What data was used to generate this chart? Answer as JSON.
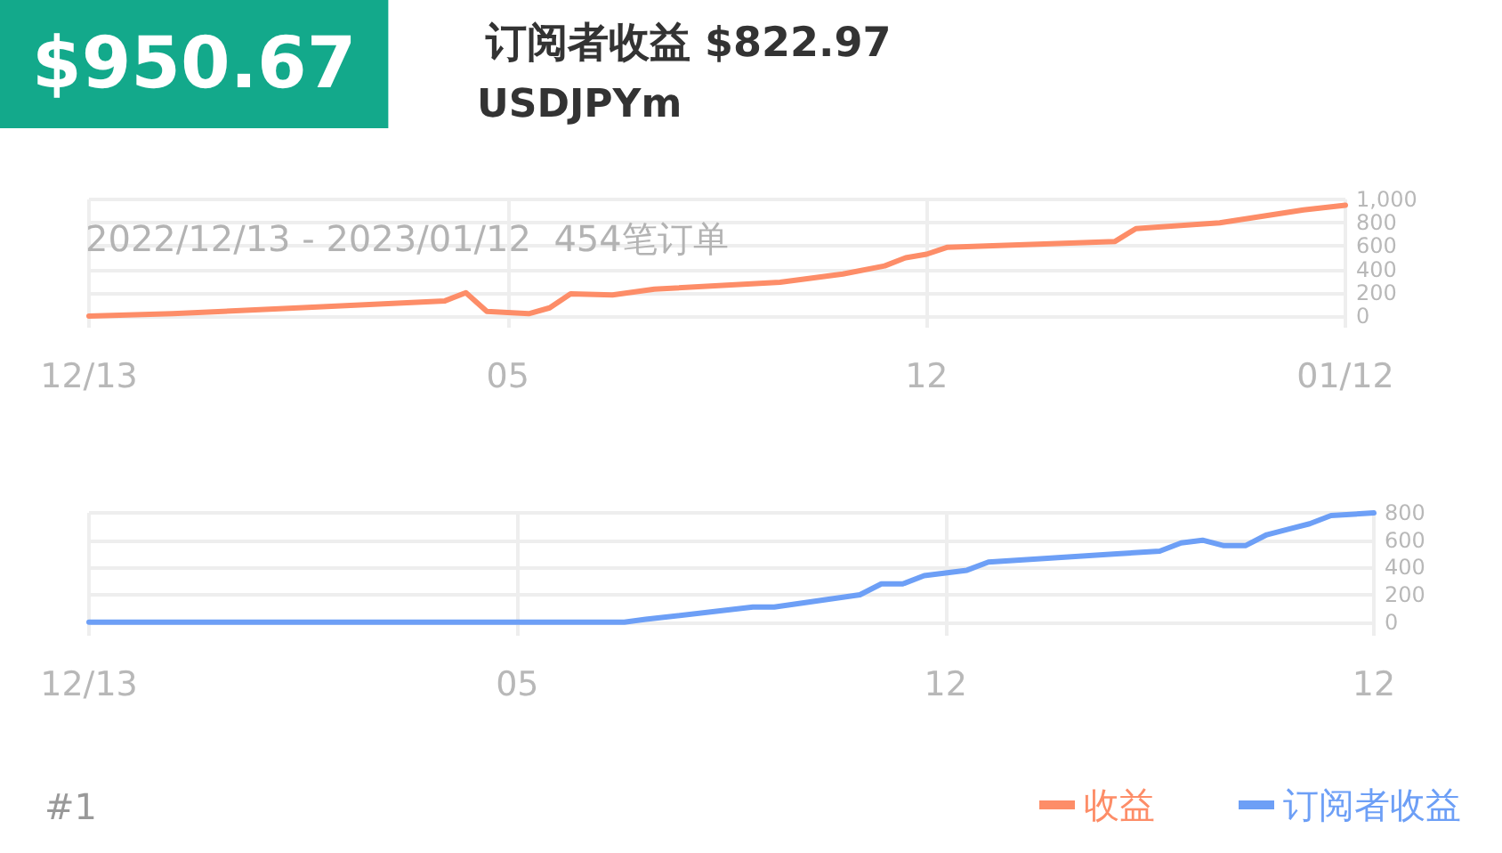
{
  "chart_data": [
    {
      "type": "line",
      "title": "$950.67",
      "subtitle": "订阅者收益 $822.97",
      "annotations": [
        "USDJPYm",
        "2022/12/13 - 2023/01/12  454笔订单",
        "#1"
      ],
      "categories": [
        "12/13",
        null,
        null,
        null,
        null,
        null,
        null,
        null,
        null,
        null,
        null,
        null,
        null,
        null,
        null,
        null,
        null,
        null,
        null,
        null,
        "05",
        null,
        null,
        null,
        null,
        null,
        null,
        null,
        null,
        null,
        null,
        null,
        null,
        null,
        null,
        null,
        null,
        null,
        null,
        null,
        "12",
        null,
        null,
        null,
        null,
        null,
        null,
        null,
        null,
        null,
        null,
        null,
        null,
        null,
        null,
        null,
        null,
        null,
        null,
        null,
        "01/12"
      ],
      "series": [
        {
          "name": "收益",
          "color": "#fd8d68",
          "values": [
            0,
            null,
            null,
            null,
            20,
            null,
            null,
            null,
            null,
            null,
            70,
            null,
            null,
            null,
            null,
            null,
            null,
            130,
            200,
            40,
            null,
            20,
            70,
            190,
            null,
            180,
            null,
            230,
            null,
            null,
            null,
            null,
            null,
            290,
            null,
            null,
            360,
            null,
            430,
            500,
            530,
            590,
            null,
            null,
            null,
            null,
            null,
            null,
            null,
            640,
            750,
            null,
            null,
            null,
            800,
            null,
            null,
            null,
            910,
            null,
            950
          ]
        }
      ],
      "ylim": [
        -100,
        1000
      ],
      "yticks": [
        0,
        200,
        400,
        600,
        800,
        {
          "value": 1000,
          "label": "1,000"
        }
      ],
      "grid": true,
      "legend": "bottom right",
      "marker": "none",
      "line_style": "solid"
    },
    {
      "type": "line",
      "categories": [
        "12/13",
        null,
        null,
        null,
        null,
        null,
        null,
        null,
        null,
        null,
        null,
        null,
        null,
        null,
        null,
        null,
        null,
        null,
        null,
        null,
        "05",
        null,
        null,
        null,
        null,
        null,
        null,
        null,
        null,
        null,
        null,
        null,
        null,
        null,
        null,
        null,
        null,
        null,
        null,
        null,
        "12",
        null,
        null,
        null,
        null,
        null,
        null,
        null,
        null,
        null,
        null,
        null,
        null,
        null,
        null,
        null,
        null,
        null,
        null,
        null,
        "12"
      ],
      "series": [
        {
          "name": "订阅者收益",
          "color": "#6d9ff6",
          "values": [
            0,
            null,
            null,
            null,
            null,
            null,
            null,
            null,
            null,
            null,
            null,
            null,
            null,
            null,
            null,
            null,
            null,
            null,
            null,
            null,
            null,
            null,
            null,
            null,
            null,
            0,
            20,
            null,
            null,
            null,
            null,
            110,
            110,
            null,
            null,
            null,
            200,
            280,
            280,
            340,
            null,
            380,
            440,
            null,
            null,
            null,
            null,
            null,
            500,
            null,
            520,
            580,
            600,
            560,
            560,
            640,
            680,
            720,
            780,
            null,
            800
          ]
        }
      ],
      "ylim": [
        -100,
        800
      ],
      "yticks": [
        0,
        200,
        400,
        600,
        800
      ],
      "grid": true,
      "legend": "bottom right",
      "marker": "none",
      "line_style": "solid"
    }
  ]
}
